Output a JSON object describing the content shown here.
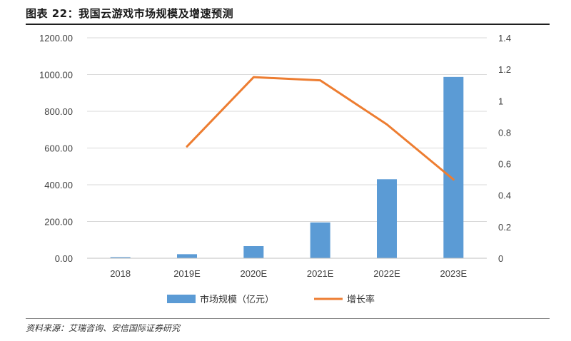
{
  "header": {
    "figure_title": "图表 22：我国云游戏市场规模及增速预测"
  },
  "footer": {
    "source": "资料来源：艾瑞咨询、安信国际证券研究"
  },
  "colors": {
    "bar": "#5b9bd5",
    "line": "#ed7d31",
    "grid": "#d9d9d9",
    "axis": "#bfbfbf"
  },
  "chart_data": {
    "type": "bar",
    "categories": [
      "2018",
      "2019E",
      "2020E",
      "2021E",
      "2022E",
      "2023E"
    ],
    "series": [
      {
        "name": "市场规模（亿元）",
        "type": "bar",
        "axis": "left",
        "values": [
          6,
          22,
          66,
          195,
          430,
          987
        ]
      },
      {
        "name": "增长率",
        "type": "line",
        "axis": "right",
        "values": [
          null,
          0.71,
          1.15,
          1.13,
          0.85,
          0.5
        ]
      }
    ],
    "y_left": {
      "ylim": [
        0,
        1200
      ],
      "ticks": [
        "0.00",
        "200.00",
        "400.00",
        "600.00",
        "800.00",
        "1000.00",
        "1200.00"
      ]
    },
    "y_right": {
      "ylim": [
        0,
        1.4
      ],
      "ticks": [
        "0",
        "0.2",
        "0.4",
        "0.6",
        "0.8",
        "1",
        "1.2",
        "1.4"
      ]
    },
    "grid": true,
    "legend_position": "bottom"
  }
}
